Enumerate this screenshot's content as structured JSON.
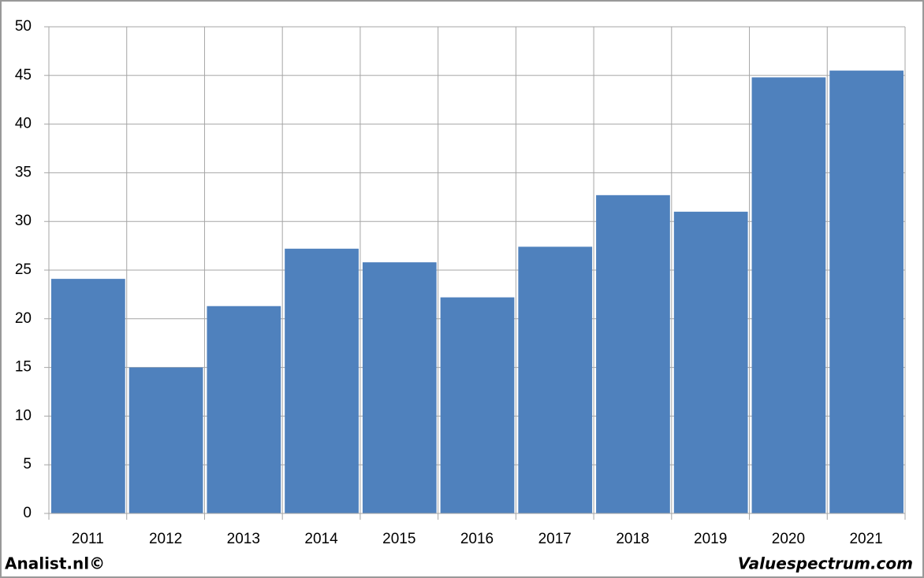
{
  "chart_data": {
    "type": "bar",
    "categories": [
      "2011",
      "2012",
      "2013",
      "2014",
      "2015",
      "2016",
      "2017",
      "2018",
      "2019",
      "2020",
      "2021"
    ],
    "values": [
      24.1,
      15.0,
      21.3,
      27.2,
      25.8,
      22.2,
      27.4,
      32.7,
      31.0,
      44.8,
      45.5
    ],
    "color": "#4f81bd",
    "ylim": [
      0,
      50
    ],
    "yticks": [
      0,
      5,
      10,
      15,
      20,
      25,
      30,
      35,
      40,
      45,
      50
    ],
    "grid": true
  },
  "footer": {
    "left": "Analist.nl©",
    "right": "Valuespectrum.com"
  }
}
